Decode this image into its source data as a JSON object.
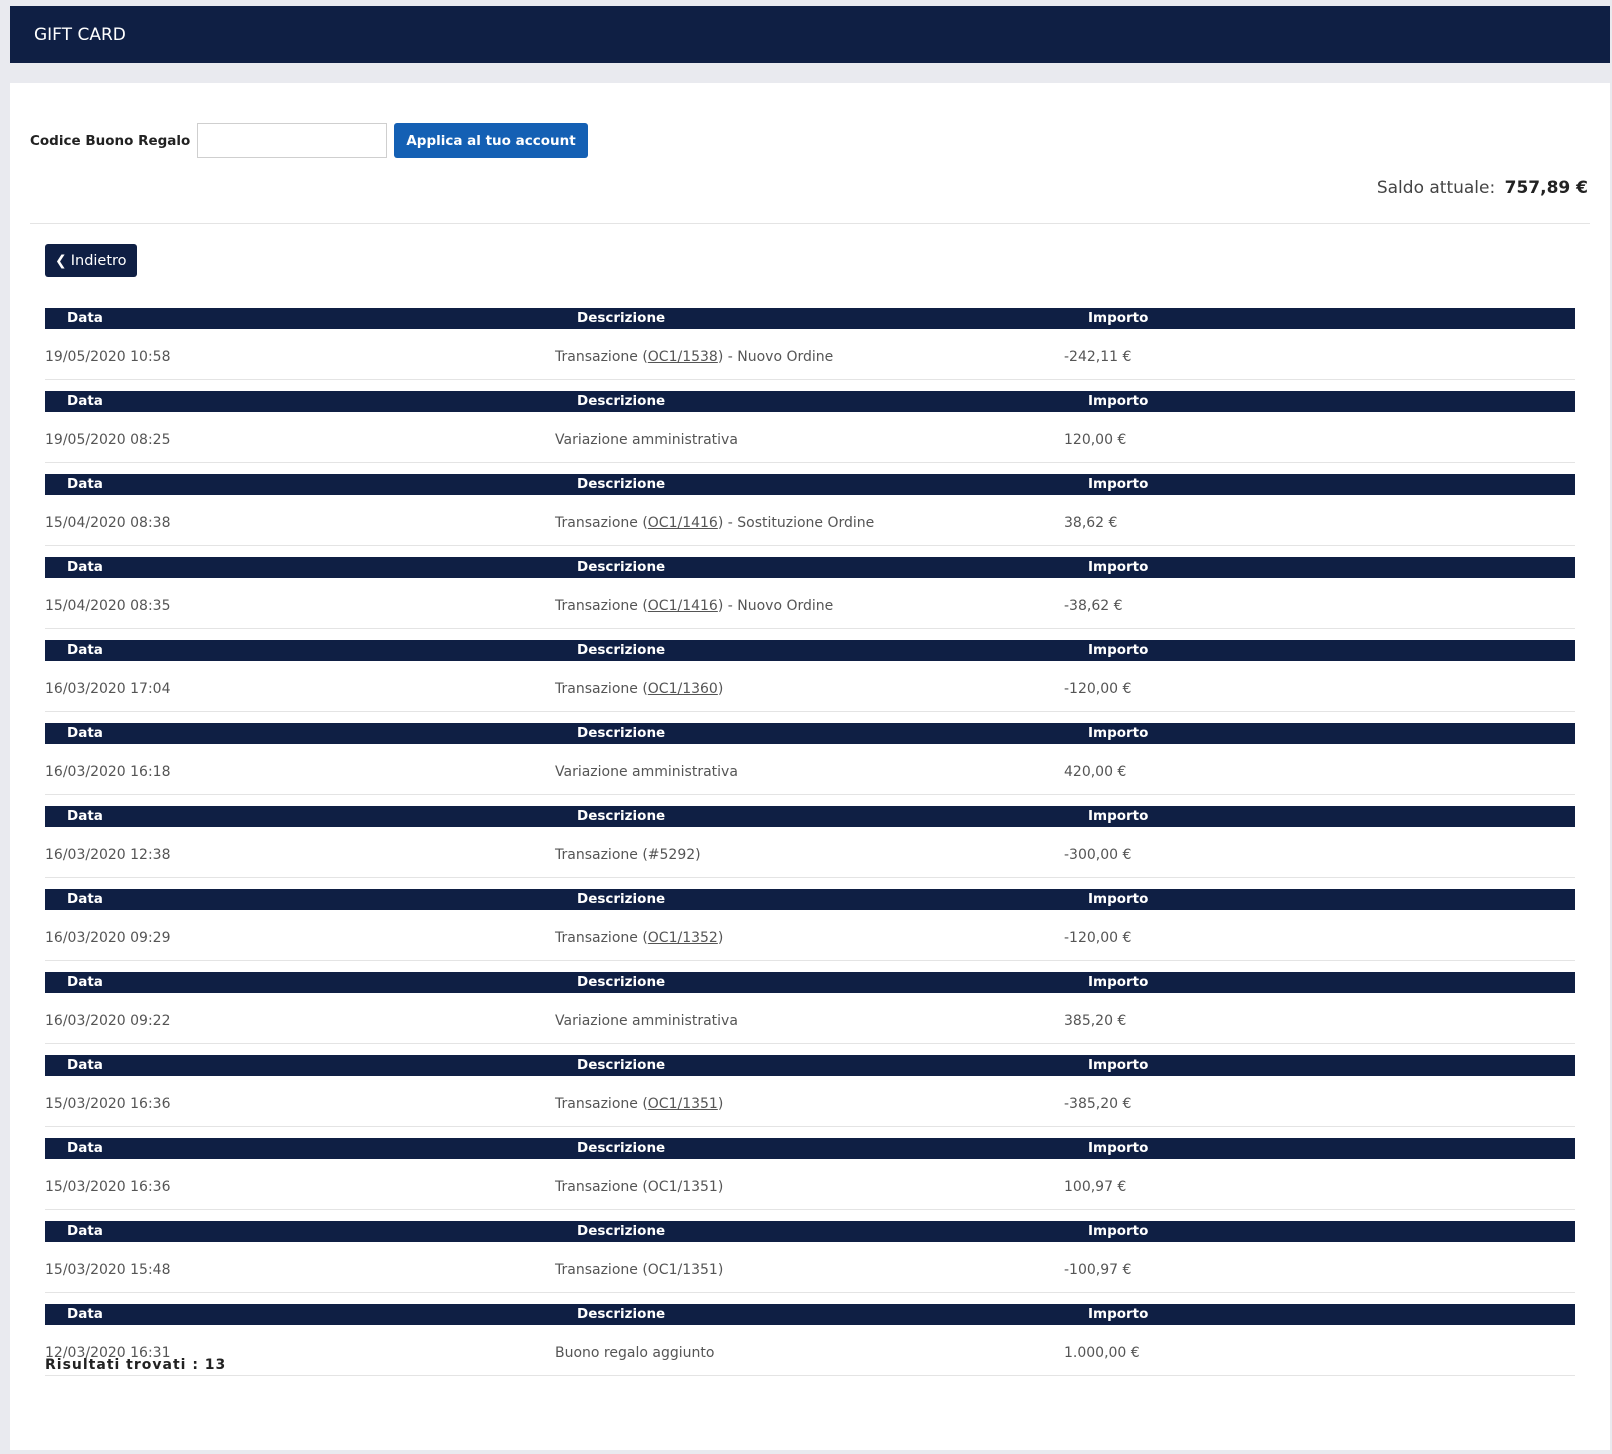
{
  "header": {
    "title": "GIFT CARD"
  },
  "form": {
    "label": "Codice Buono Regalo",
    "input_value": "",
    "input_placeholder": "",
    "apply_label": "Applica al tuo account"
  },
  "balance": {
    "label": "Saldo attuale:",
    "value": "757,89 €"
  },
  "back_button": {
    "label": "Indietro",
    "icon": "chevron-left-icon"
  },
  "table_headers": {
    "date": "Data",
    "description": "Descrizione",
    "amount": "Importo"
  },
  "transactions": [
    {
      "date": "19/05/2020 10:58",
      "desc_pre": "Transazione (",
      "desc_link": "OC1/1538",
      "desc_post": ") - Nuovo Ordine",
      "amount": "-242,11 €"
    },
    {
      "date": "19/05/2020 08:25",
      "desc_pre": "Variazione amministrativa",
      "desc_link": "",
      "desc_post": "",
      "amount": "120,00 €"
    },
    {
      "date": "15/04/2020 08:38",
      "desc_pre": "Transazione (",
      "desc_link": "OC1/1416",
      "desc_post": ") - Sostituzione Ordine",
      "amount": "38,62 €"
    },
    {
      "date": "15/04/2020 08:35",
      "desc_pre": "Transazione (",
      "desc_link": "OC1/1416",
      "desc_post": ") - Nuovo Ordine",
      "amount": "-38,62 €"
    },
    {
      "date": "16/03/2020 17:04",
      "desc_pre": "Transazione (",
      "desc_link": "OC1/1360",
      "desc_post": ")",
      "amount": "-120,00 €"
    },
    {
      "date": "16/03/2020 16:18",
      "desc_pre": "Variazione amministrativa",
      "desc_link": "",
      "desc_post": "",
      "amount": "420,00 €"
    },
    {
      "date": "16/03/2020 12:38",
      "desc_pre": "Transazione (#5292)",
      "desc_link": "",
      "desc_post": "",
      "amount": "-300,00 €"
    },
    {
      "date": "16/03/2020 09:29",
      "desc_pre": "Transazione (",
      "desc_link": "OC1/1352",
      "desc_post": ")",
      "amount": "-120,00 €"
    },
    {
      "date": "16/03/2020 09:22",
      "desc_pre": "Variazione amministrativa",
      "desc_link": "",
      "desc_post": "",
      "amount": "385,20 €"
    },
    {
      "date": "15/03/2020 16:36",
      "desc_pre": "Transazione (",
      "desc_link": "OC1/1351",
      "desc_post": ")",
      "amount": "-385,20 €"
    },
    {
      "date": "15/03/2020 16:36",
      "desc_pre": "Transazione (OC1/1351)",
      "desc_link": "",
      "desc_post": "",
      "amount": "100,97 €"
    },
    {
      "date": "15/03/2020 15:48",
      "desc_pre": "Transazione (OC1/1351)",
      "desc_link": "",
      "desc_post": "",
      "amount": "-100,97 €"
    },
    {
      "date": "12/03/2020 16:31",
      "desc_pre": "Buono regalo aggiunto",
      "desc_link": "",
      "desc_post": "",
      "amount": "1.000,00 €"
    }
  ],
  "results": {
    "label": "Risultati trovati : 13"
  }
}
